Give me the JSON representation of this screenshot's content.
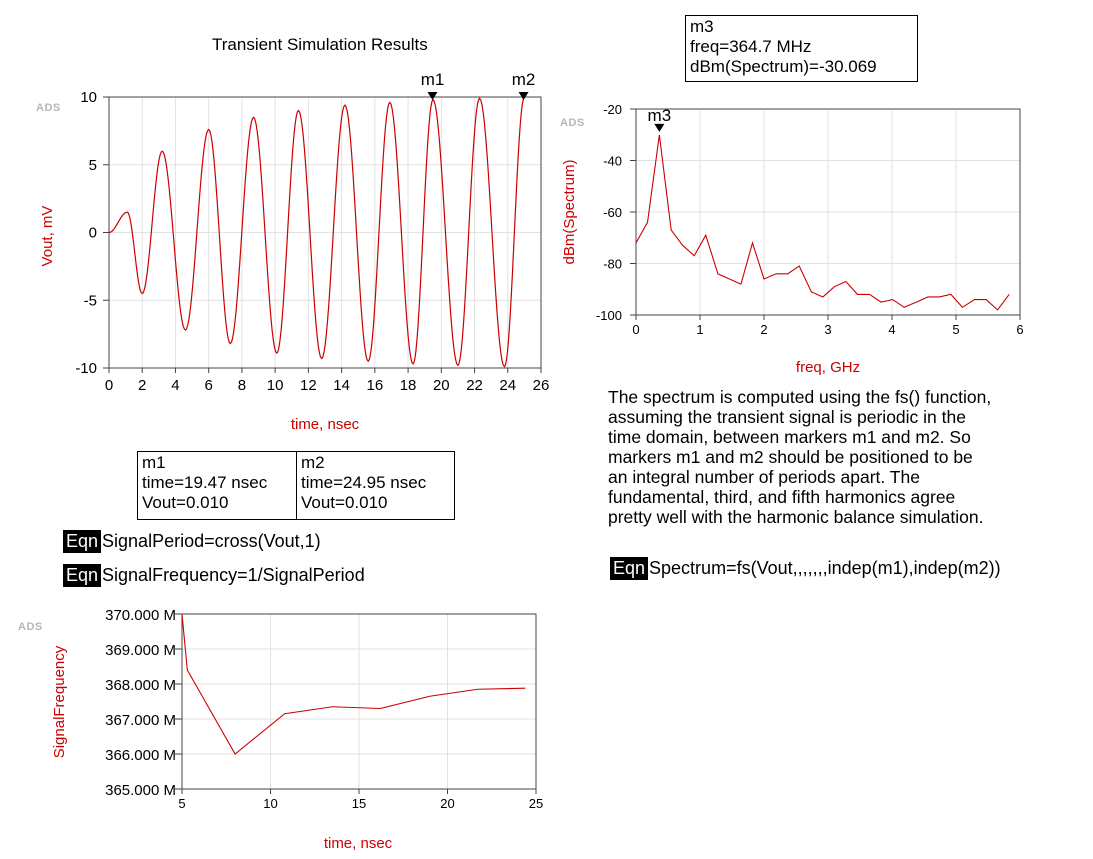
{
  "watermark": "ADS",
  "transient": {
    "title": "Transient Simulation Results",
    "xlabel": "time, nsec",
    "ylabel": "Vout, mV",
    "xticks": [
      "0",
      "2",
      "4",
      "6",
      "8",
      "10",
      "12",
      "14",
      "16",
      "18",
      "20",
      "22",
      "24",
      "26"
    ],
    "yticks": [
      "10",
      "5",
      "0",
      "-5",
      "-10"
    ],
    "markers": [
      {
        "name": "m1",
        "time": 19.47
      },
      {
        "name": "m2",
        "time": 24.95
      }
    ]
  },
  "marker_table": {
    "m1": {
      "name": "m1",
      "line1": "time=19.47 nsec",
      "line2": "Vout=0.010"
    },
    "m2": {
      "name": "m2",
      "line1": "time=24.95 nsec",
      "line2": "Vout=0.010"
    }
  },
  "equations": {
    "tag": "Eqn",
    "signal_period": "SignalPeriod=cross(Vout,1)",
    "signal_frequency": "SignalFrequency=1/SignalPeriod",
    "spectrum": "Spectrum=fs(Vout,,,,,,,indep(m1),indep(m2))"
  },
  "spectrum": {
    "marker": {
      "name": "m3",
      "line1": "freq=364.7 MHz",
      "line2": "dBm(Spectrum)=-30.069"
    },
    "xlabel": "freq, GHz",
    "ylabel": "dBm(Spectrum)",
    "xticks": [
      "0",
      "1",
      "2",
      "3",
      "4",
      "5",
      "6"
    ],
    "yticks": [
      "-20",
      "-40",
      "-60",
      "-80",
      "-100"
    ]
  },
  "note": [
    "The spectrum is computed using the fs() function,",
    "assuming the transient signal is periodic in the",
    "time domain, between markers m1 and m2.  So",
    "markers m1 and m2 should be positioned to be",
    "an integral number of periods apart.  The",
    "fundamental, third, and fifth harmonics agree",
    "pretty well with the harmonic balance simulation."
  ],
  "frequency_plot": {
    "xlabel": "time, nsec",
    "ylabel": "SignalFrequency",
    "xticks": [
      "5",
      "10",
      "15",
      "20",
      "25"
    ],
    "yticks": [
      "370.000 M",
      "369.000 M",
      "368.000 M",
      "367.000 M",
      "366.000 M",
      "365.000 M"
    ]
  },
  "chart_data": [
    {
      "type": "line",
      "title": "Transient Simulation Results",
      "xlabel": "time, nsec",
      "ylabel": "Vout, mV",
      "xlim": [
        0,
        26
      ],
      "ylim": [
        -10,
        10
      ],
      "grid": true,
      "series": [
        {
          "color": "#cc0000",
          "description": "damped-growth sinusoid, period ~2.74 ns",
          "peaks": [
            {
              "x": 1.1,
              "y": 1.5
            },
            {
              "x": 3.2,
              "y": 6.0
            },
            {
              "x": 6.0,
              "y": 7.6
            },
            {
              "x": 8.7,
              "y": 8.5
            },
            {
              "x": 11.4,
              "y": 9.0
            },
            {
              "x": 14.2,
              "y": 9.4
            },
            {
              "x": 16.9,
              "y": 9.6
            },
            {
              "x": 19.5,
              "y": 9.8
            },
            {
              "x": 22.3,
              "y": 9.9
            },
            {
              "x": 25.0,
              "y": 10.0
            }
          ],
          "troughs": [
            {
              "x": 0.0,
              "y": 0.0
            },
            {
              "x": 2.0,
              "y": -4.5
            },
            {
              "x": 4.6,
              "y": -7.2
            },
            {
              "x": 7.3,
              "y": -8.2
            },
            {
              "x": 10.1,
              "y": -8.9
            },
            {
              "x": 12.8,
              "y": -9.3
            },
            {
              "x": 15.6,
              "y": -9.5
            },
            {
              "x": 18.3,
              "y": -9.7
            },
            {
              "x": 21.0,
              "y": -9.8
            },
            {
              "x": 23.8,
              "y": -9.9
            }
          ]
        }
      ]
    },
    {
      "type": "line",
      "xlabel": "freq, GHz",
      "ylabel": "dBm(Spectrum)",
      "xlim": [
        0,
        6
      ],
      "ylim": [
        -100,
        -20
      ],
      "grid": true,
      "series": [
        {
          "color": "#cc0000",
          "x": [
            0,
            0.18,
            0.365,
            0.55,
            0.73,
            0.91,
            1.09,
            1.28,
            1.46,
            1.64,
            1.82,
            2.0,
            2.19,
            2.37,
            2.55,
            2.74,
            2.92,
            3.1,
            3.28,
            3.46,
            3.65,
            3.83,
            4.01,
            4.19,
            4.38,
            4.56,
            4.74,
            4.92,
            5.1,
            5.29,
            5.47,
            5.65,
            5.83
          ],
          "y": [
            -72,
            -64,
            -30.069,
            -67,
            -73,
            -77,
            -69,
            -84,
            -86,
            -88,
            -72,
            -86,
            -84,
            -84,
            -81,
            -91,
            -93,
            -89,
            -87,
            -92,
            -92,
            -95,
            -94,
            -97,
            -95,
            -93,
            -93,
            -92,
            -97,
            -94,
            -94,
            -98,
            -92
          ]
        }
      ]
    },
    {
      "type": "line",
      "xlabel": "time, nsec",
      "ylabel": "SignalFrequency",
      "xlim": [
        5,
        25
      ],
      "ylim": [
        365000000,
        370000000
      ],
      "grid": true,
      "series": [
        {
          "color": "#cc0000",
          "x": [
            5.0,
            5.3,
            8.0,
            10.8,
            13.5,
            16.2,
            19.0,
            21.7,
            24.4
          ],
          "y": [
            370000000,
            368400000,
            366000000,
            367150000,
            367350000,
            367300000,
            367650000,
            367850000,
            367880000
          ]
        }
      ]
    }
  ]
}
